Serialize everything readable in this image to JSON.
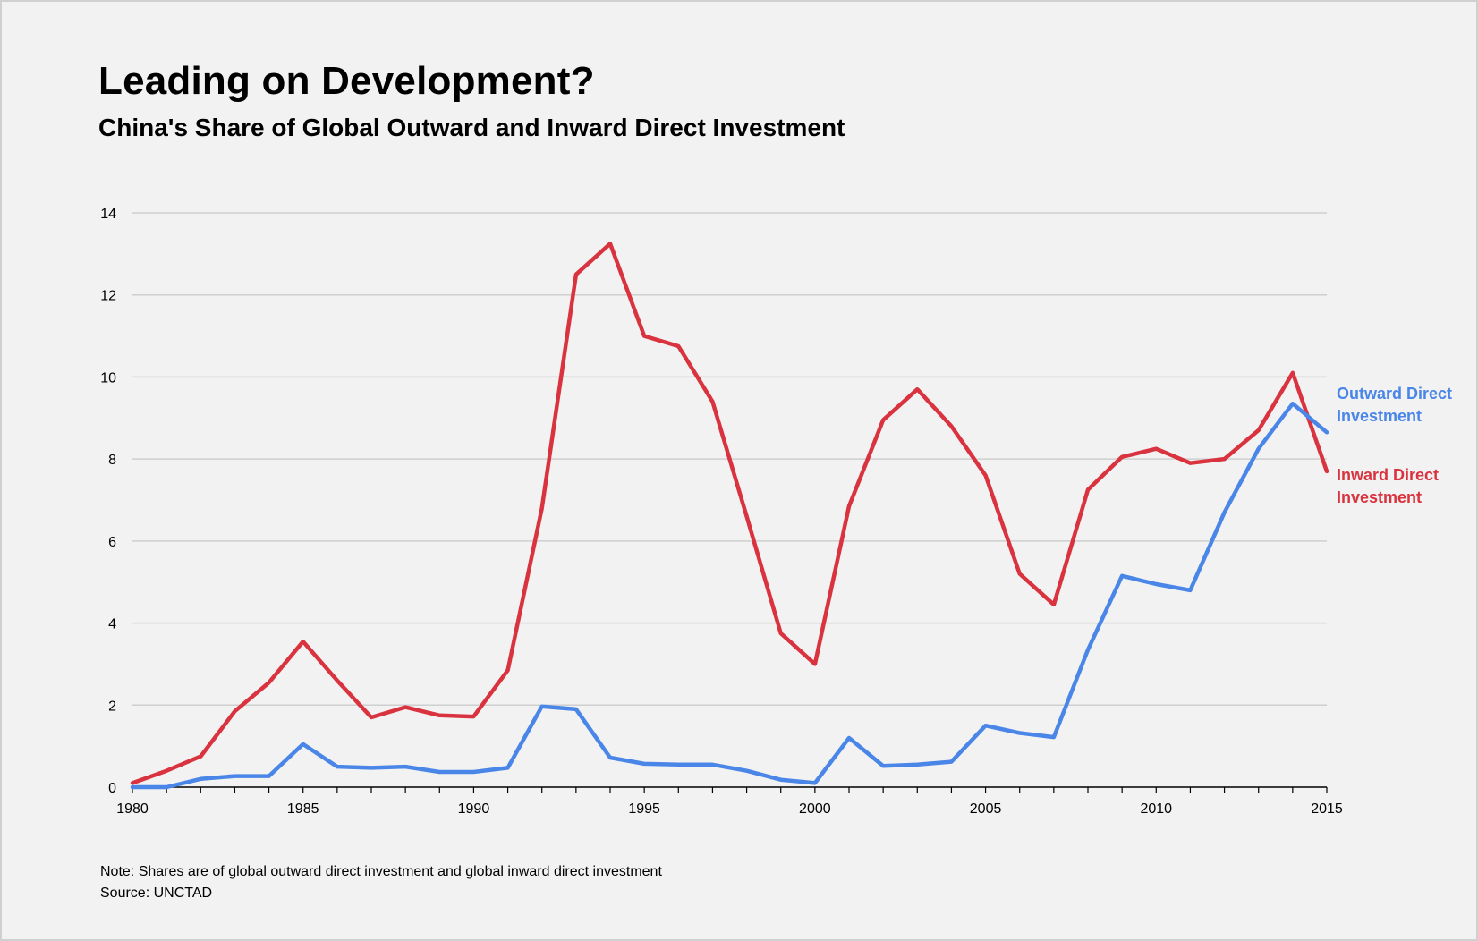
{
  "title": "Leading on Development?",
  "subtitle": "China's Share of Global Outward and Inward Direct Investment",
  "note": "Note: Shares are of global outward direct investment and global inward direct investment",
  "source": "Source: UNCTAD",
  "colors": {
    "outward": "#4a86e8",
    "inward": "#d9333f",
    "grid": "#cfcfcf",
    "background": "#f2f2f2"
  },
  "chart_data": {
    "type": "line",
    "title": "Leading on Development?",
    "subtitle": "China's Share of Global Outward and Inward Direct Investment",
    "xlabel": "",
    "ylabel": "",
    "xlim": [
      1980,
      2015
    ],
    "ylim": [
      0,
      14
    ],
    "x_ticks": [
      1980,
      1985,
      1990,
      1995,
      2000,
      2005,
      2010,
      2015
    ],
    "y_ticks": [
      0,
      2,
      4,
      6,
      8,
      10,
      12,
      14
    ],
    "grid": true,
    "legend_placement": "right, as direct labels at line ends",
    "x": [
      1980,
      1981,
      1982,
      1983,
      1984,
      1985,
      1986,
      1987,
      1988,
      1989,
      1990,
      1991,
      1992,
      1993,
      1994,
      1995,
      1996,
      1997,
      1998,
      1999,
      2000,
      2001,
      2002,
      2003,
      2004,
      2005,
      2006,
      2007,
      2008,
      2009,
      2010,
      2011,
      2012,
      2013,
      2014,
      2015
    ],
    "series": [
      {
        "name": "Inward Direct Investment",
        "label_lines": [
          "Inward Direct",
          "Investment"
        ],
        "color": "#d9333f",
        "values": [
          0.1,
          0.4,
          0.75,
          1.85,
          2.55,
          3.55,
          2.6,
          1.7,
          1.95,
          1.75,
          1.72,
          2.85,
          6.8,
          12.5,
          13.25,
          11.0,
          10.75,
          9.4,
          6.6,
          3.75,
          3.0,
          6.85,
          8.95,
          9.7,
          8.8,
          7.6,
          5.2,
          4.45,
          7.25,
          8.05,
          8.25,
          7.9,
          8.0,
          8.7,
          10.1,
          7.7
        ]
      },
      {
        "name": "Outward Direct Investment",
        "label_lines": [
          "Outward Direct",
          "Investment"
        ],
        "color": "#4a86e8",
        "values": [
          0.0,
          0.0,
          0.2,
          0.27,
          0.27,
          1.05,
          0.5,
          0.47,
          0.5,
          0.37,
          0.37,
          0.47,
          1.97,
          1.9,
          0.72,
          0.57,
          0.55,
          0.55,
          0.4,
          0.18,
          0.1,
          1.2,
          0.52,
          0.55,
          0.62,
          1.5,
          1.32,
          1.22,
          3.35,
          5.15,
          4.95,
          4.8,
          6.7,
          8.25,
          9.35,
          8.65
        ]
      }
    ]
  }
}
